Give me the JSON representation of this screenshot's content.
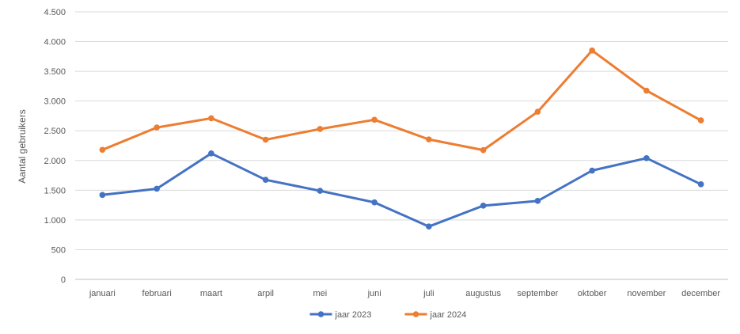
{
  "chart_data": {
    "type": "line",
    "title": "",
    "xlabel": "",
    "ylabel": "Aantal gebruikers",
    "ylim": [
      0,
      4500
    ],
    "yticks": [
      0,
      500,
      1000,
      1500,
      2000,
      2500,
      3000,
      3500,
      4000,
      4500
    ],
    "ytick_labels": [
      "0",
      "500",
      "1.000",
      "1.500",
      "2.000",
      "2.500",
      "3.000",
      "3.500",
      "4.000",
      "4.500"
    ],
    "categories": [
      "januari",
      "februari",
      "maart",
      "arpil",
      "mei",
      "juni",
      "juli",
      "augustus",
      "september",
      "oktober",
      "november",
      "december"
    ],
    "grid": true,
    "legend_position": "bottom",
    "series": [
      {
        "name": "jaar 2023",
        "color": "#4472C4",
        "values": [
          1420,
          1525,
          2120,
          1675,
          1490,
          1295,
          890,
          1240,
          1320,
          1830,
          2040,
          1600
        ]
      },
      {
        "name": "jaar 2024",
        "color": "#ED7D31",
        "values": [
          2180,
          2555,
          2710,
          2350,
          2530,
          2685,
          2355,
          2175,
          2820,
          3850,
          3175,
          2675
        ]
      }
    ]
  }
}
